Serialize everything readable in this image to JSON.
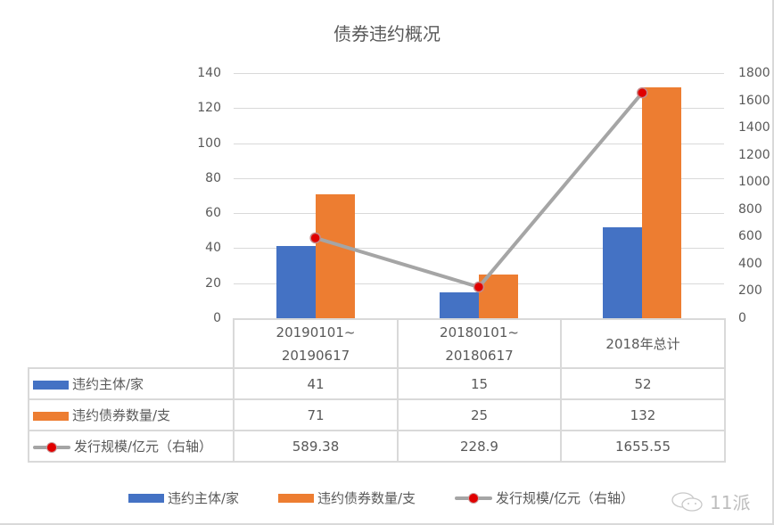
{
  "chart_data": {
    "type": "bar",
    "title": "债券违约概况",
    "categories": [
      "20190101~20190617",
      "20180101~20180617",
      "2018年总计"
    ],
    "category_lines": [
      [
        "20190101~",
        "20190617"
      ],
      [
        "20180101~",
        "20180617"
      ],
      [
        "2018年总计"
      ]
    ],
    "series": [
      {
        "name": "违约主体/家",
        "type": "bar",
        "axis": "left",
        "color": "#4472c4",
        "values": [
          41,
          15,
          52
        ]
      },
      {
        "name": "违约债券数量/支",
        "type": "bar",
        "axis": "left",
        "color": "#ed7d31",
        "values": [
          71,
          25,
          132
        ]
      },
      {
        "name": "发行规模/亿元（右轴）",
        "type": "line",
        "axis": "right",
        "color": "#a5a5a5",
        "marker_color": "#e00000",
        "values": [
          589.38,
          228.9,
          1655.55
        ]
      }
    ],
    "left_axis": {
      "min": 0,
      "max": 140,
      "ticks": [
        "0",
        "20",
        "40",
        "60",
        "80",
        "100",
        "120",
        "140"
      ]
    },
    "right_axis": {
      "min": 0,
      "max": 1800,
      "ticks": [
        "0",
        "200",
        "400",
        "600",
        "800",
        "1000",
        "1200",
        "1400",
        "1600",
        "1800"
      ]
    },
    "grid": true,
    "legend_position": "bottom",
    "data_table": true,
    "xlabel": "",
    "ylabel": ""
  },
  "table": {
    "rows": [
      {
        "label": "违约主体/家",
        "cells": [
          "41",
          "15",
          "52"
        ]
      },
      {
        "label": "违约债券数量/支",
        "cells": [
          "71",
          "25",
          "132"
        ]
      },
      {
        "label": "发行规模/亿元（右轴）",
        "cells": [
          "589.38",
          "228.9",
          "1655.55"
        ]
      }
    ]
  },
  "legend": [
    "违约主体/家",
    "违约债券数量/支",
    "发行规模/亿元（右轴）"
  ],
  "watermark": "11派"
}
